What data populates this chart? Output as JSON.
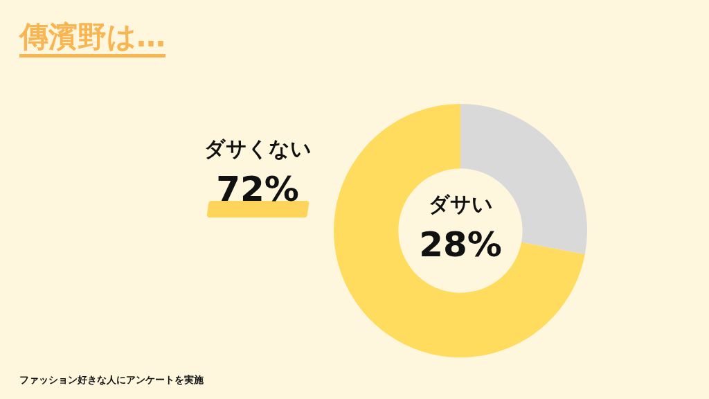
{
  "chart_data": {
    "type": "donut",
    "title": "傳濱野は…",
    "categories": [
      "ダサい",
      "ダサくない"
    ],
    "values": [
      28,
      72
    ],
    "colors": [
      "#d9d9d9",
      "#ffdc5e"
    ],
    "value_labels": [
      "28%",
      "72%"
    ],
    "legend": false,
    "annotations": [
      "ファッション好きな人にアンケートを実施"
    ]
  }
}
